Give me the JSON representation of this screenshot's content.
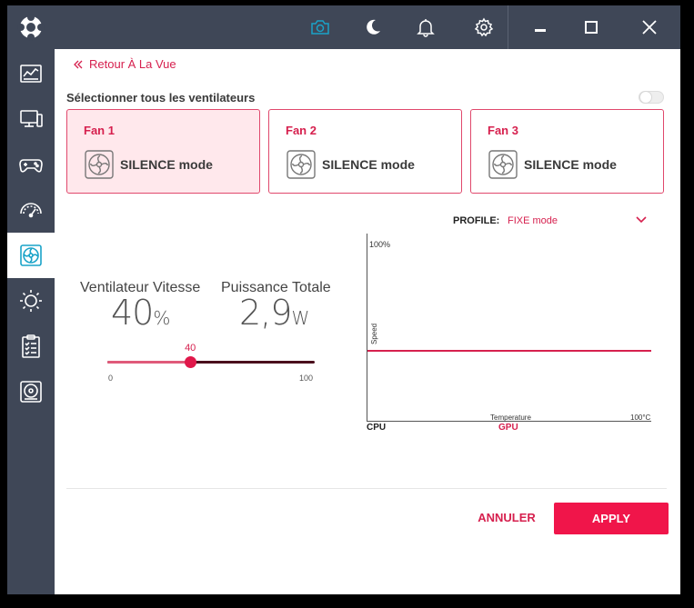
{
  "window": {
    "titlebar_icons": [
      "camera-icon",
      "moon-icon",
      "bell-icon",
      "gear-icon",
      "minimize-icon",
      "maximize-icon",
      "close-icon"
    ]
  },
  "sidebar": {
    "items": [
      {
        "name": "dashboard-icon",
        "active": false
      },
      {
        "name": "monitor-icon",
        "active": false
      },
      {
        "name": "gamepad-icon",
        "active": false
      },
      {
        "name": "gauge-icon",
        "active": false
      },
      {
        "name": "fan-icon",
        "active": true
      },
      {
        "name": "sun-icon",
        "active": false
      },
      {
        "name": "checklist-icon",
        "active": false
      },
      {
        "name": "disk-icon",
        "active": false
      }
    ]
  },
  "header": {
    "back_link": "Retour À La Vue",
    "select_all": "Sélectionner tous les ventilateurs",
    "select_all_on": false
  },
  "fans": [
    {
      "title": "Fan 1",
      "mode": "SILENCE mode",
      "selected": true
    },
    {
      "title": "Fan 2",
      "mode": "SILENCE mode",
      "selected": false
    },
    {
      "title": "Fan 3",
      "mode": "SILENCE mode",
      "selected": false
    }
  ],
  "stats": {
    "speed_label": "Ventilateur Vitesse",
    "speed_value": "40",
    "speed_unit": "%",
    "power_label": "Puissance Totale",
    "power_value": "2,9",
    "power_unit": "W"
  },
  "slider": {
    "value": 40,
    "value_label": "40",
    "min": 0,
    "max": 100,
    "min_label": "0",
    "max_label": "100"
  },
  "profile": {
    "label": "PROFILE:",
    "value": "FIXE mode"
  },
  "graph": {
    "y_top_label": "100%",
    "y_axis_label": "Speed",
    "x_axis_label": "Temperature",
    "x_max_label": "100°C",
    "fixed_speed_percent": 40,
    "tabs": [
      "CPU",
      "GPU"
    ],
    "active_tab": "GPU"
  },
  "actions": {
    "cancel_label": "ANNULER",
    "apply_label": "APPLY"
  },
  "colors": {
    "accent": "#d6204e",
    "apply": "#f0154a",
    "sidebar": "#3f4757",
    "card_selected": "#ffe8ec"
  }
}
